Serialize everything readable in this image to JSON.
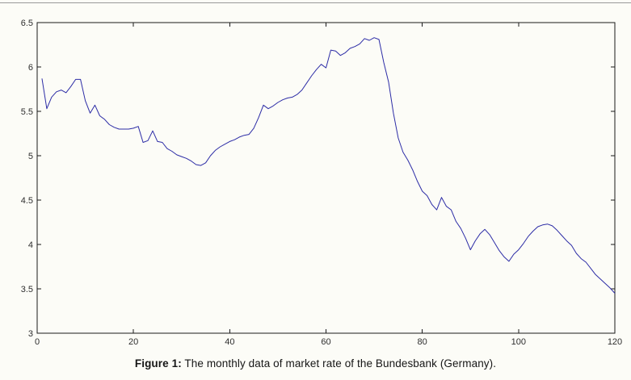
{
  "page": {
    "background": "#fcfcf7",
    "top_border_color": "#9a9a9a"
  },
  "caption": {
    "label": "Figure 1:",
    "text": "The monthly data of market rate of the Bundesbank (Germany)."
  },
  "chart_data": {
    "type": "line",
    "title": "",
    "xlabel": "",
    "ylabel": "",
    "xlim": [
      0,
      120
    ],
    "ylim": [
      3,
      6.5
    ],
    "x_ticks": [
      0,
      20,
      40,
      60,
      80,
      100,
      120
    ],
    "x_tick_labels": [
      "0",
      "20",
      "40",
      "60",
      "80",
      "100",
      "120"
    ],
    "y_ticks": [
      3,
      3.5,
      4,
      4.5,
      5,
      5.5,
      6,
      6.5
    ],
    "y_tick_labels": [
      "3",
      "3.5",
      "4",
      "4.5",
      "5",
      "5.5",
      "6",
      "6.5"
    ],
    "grid": false,
    "legend": null,
    "box": true,
    "line_color": "#2c2ca6",
    "axis_color": "#1a1a1a",
    "tick_label_color": "#2e2e2e",
    "series": [
      {
        "name": "bundesbank-market-rate",
        "x_start": 1,
        "x_step": 1,
        "values": [
          5.87,
          5.53,
          5.66,
          5.72,
          5.74,
          5.71,
          5.78,
          5.86,
          5.86,
          5.62,
          5.48,
          5.57,
          5.45,
          5.41,
          5.35,
          5.32,
          5.3,
          5.3,
          5.3,
          5.31,
          5.33,
          5.15,
          5.17,
          5.28,
          5.16,
          5.15,
          5.08,
          5.05,
          5.01,
          4.99,
          4.97,
          4.94,
          4.9,
          4.89,
          4.92,
          5.0,
          5.06,
          5.1,
          5.13,
          5.16,
          5.18,
          5.21,
          5.23,
          5.24,
          5.31,
          5.43,
          5.57,
          5.53,
          5.56,
          5.6,
          5.63,
          5.65,
          5.66,
          5.69,
          5.74,
          5.82,
          5.9,
          5.97,
          6.03,
          5.99,
          6.19,
          6.18,
          6.13,
          6.16,
          6.21,
          6.23,
          6.26,
          6.32,
          6.3,
          6.33,
          6.31,
          6.05,
          5.83,
          5.48,
          5.2,
          5.04,
          4.95,
          4.84,
          4.71,
          4.6,
          4.55,
          4.45,
          4.39,
          4.53,
          4.43,
          4.39,
          4.26,
          4.18,
          4.07,
          3.94,
          4.04,
          4.12,
          4.17,
          4.11,
          4.02,
          3.93,
          3.86,
          3.81,
          3.89,
          3.94,
          4.01,
          4.09,
          4.15,
          4.2,
          4.22,
          4.23,
          4.21,
          4.16,
          4.1,
          4.04,
          3.99,
          3.9,
          3.84,
          3.8,
          3.73,
          3.66,
          3.61,
          3.56,
          3.51,
          3.45
        ]
      }
    ]
  }
}
